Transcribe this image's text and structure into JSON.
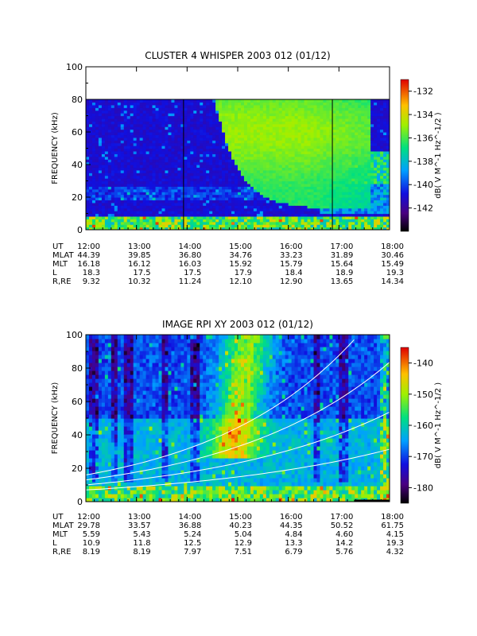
{
  "chart_data": [
    {
      "type": "heatmap",
      "title": "CLUSTER 4 WHISPER 2003 012 (01/12)",
      "ylabel": "FREQUENCY (kHz)",
      "ylim": [
        0,
        100
      ],
      "y_ticks": [
        "0",
        "20",
        "40",
        "60",
        "80",
        "100"
      ],
      "x_ticks": [
        "12:00",
        "13:00",
        "14:00",
        "15:00",
        "16:00",
        "17:00",
        "18:00"
      ],
      "colorbar": {
        "label": "dB( V M^-1 Hz^-1/2 )",
        "range": [
          -144,
          -131
        ],
        "ticks": [
          "-132",
          "-134",
          "-136",
          "-138",
          "-140",
          "-142"
        ]
      },
      "ephemeris": {
        "labels": [
          "UT",
          "MLAT",
          "MLT",
          "L",
          "R,RE"
        ],
        "rows": [
          [
            "12:00",
            "13:00",
            "14:00",
            "15:00",
            "16:00",
            "17:00",
            "18:00"
          ],
          [
            "44.39",
            "39.85",
            "36.80",
            "34.76",
            "33.23",
            "31.89",
            "30.46"
          ],
          [
            "16.18",
            "16.12",
            "16.03",
            "15.92",
            "15.79",
            "15.64",
            "15.49"
          ],
          [
            "18.3",
            "17.5",
            "17.5",
            "17.9",
            "18.4",
            "18.9",
            "19.3"
          ],
          [
            "9.32",
            "10.32",
            "11.24",
            "12.10",
            "12.90",
            "13.65",
            "14.34"
          ]
        ]
      },
      "notes": "data coverage 0-80 kHz; broad green emission descending from ~80 kHz at 14:30 to ~13 kHz at 15:30"
    },
    {
      "type": "heatmap",
      "title": "IMAGE RPI XY 2003 012 (01/12)",
      "ylabel": "FREQUENCY (kHz)",
      "ylim": [
        0,
        100
      ],
      "y_ticks": [
        "0",
        "20",
        "40",
        "60",
        "80",
        "100"
      ],
      "x_ticks": [
        "12:00",
        "13:00",
        "14:00",
        "15:00",
        "16:00",
        "17:00",
        "18:00"
      ],
      "colorbar": {
        "label": "dB( V M^-1 Hz^-1/2 )",
        "range": [
          -185,
          -135
        ],
        "ticks": [
          "-140",
          "-150",
          "-160",
          "-170",
          "-180"
        ]
      },
      "ephemeris": {
        "labels": [
          "UT",
          "MLAT",
          "MLT",
          "L",
          "R,RE"
        ],
        "rows": [
          [
            "12:00",
            "13:00",
            "14:00",
            "15:00",
            "16:00",
            "17:00",
            "18:00"
          ],
          [
            "29.78",
            "33.57",
            "36.88",
            "40.23",
            "44.35",
            "50.52",
            "61.75"
          ],
          [
            "5.59",
            "5.43",
            "5.24",
            "5.04",
            "4.84",
            "4.60",
            "4.15"
          ],
          [
            "10.9",
            "11.8",
            "12.5",
            "12.9",
            "13.3",
            "14.2",
            "19.3"
          ],
          [
            "8.19",
            "8.19",
            "7.97",
            "7.51",
            "6.79",
            "5.76",
            "4.32"
          ]
        ]
      },
      "overlay": "white curves rising toward 18:00",
      "notes": "broad warm emission 30-100 kHz centered near 15:00"
    }
  ]
}
